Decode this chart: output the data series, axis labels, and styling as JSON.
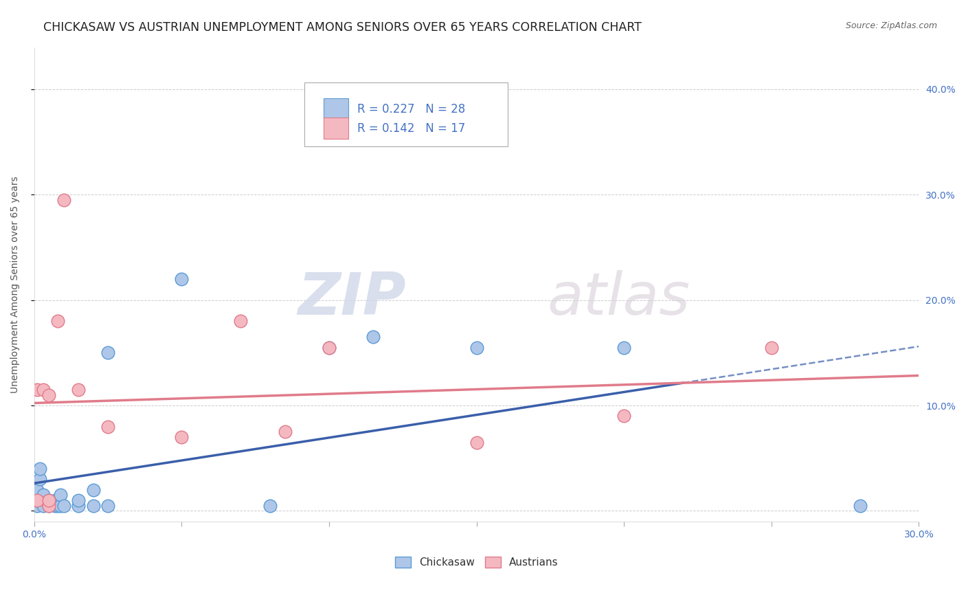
{
  "title": "CHICKASAW VS AUSTRIAN UNEMPLOYMENT AMONG SENIORS OVER 65 YEARS CORRELATION CHART",
  "source": "Source: ZipAtlas.com",
  "ylabel_label": "Unemployment Among Seniors over 65 years",
  "xlim": [
    0.0,
    0.3
  ],
  "ylim": [
    -0.01,
    0.44
  ],
  "x_ticks": [
    0.0,
    0.05,
    0.1,
    0.15,
    0.2,
    0.25,
    0.3
  ],
  "y_ticks": [
    0.0,
    0.1,
    0.2,
    0.3,
    0.4
  ],
  "chickasaw_color": "#aec6e8",
  "chickasaw_edge_color": "#5b9bd5",
  "austrian_color": "#f4b8c1",
  "austrian_edge_color": "#e07b8a",
  "trendline_chickasaw_color": "#3a5faa",
  "trendline_austrian_color": "#e07b8a",
  "R_chickasaw": 0.227,
  "N_chickasaw": 28,
  "R_austrian": 0.142,
  "N_austrian": 17,
  "chickasaw_x": [
    0.001,
    0.001,
    0.001,
    0.002,
    0.002,
    0.003,
    0.003,
    0.005,
    0.005,
    0.007,
    0.007,
    0.008,
    0.009,
    0.009,
    0.01,
    0.015,
    0.015,
    0.02,
    0.02,
    0.025,
    0.025,
    0.05,
    0.08,
    0.1,
    0.115,
    0.15,
    0.2,
    0.28
  ],
  "chickasaw_y": [
    0.005,
    0.01,
    0.02,
    0.03,
    0.04,
    0.005,
    0.015,
    0.005,
    0.01,
    0.005,
    0.01,
    0.005,
    0.005,
    0.015,
    0.005,
    0.005,
    0.01,
    0.005,
    0.02,
    0.005,
    0.15,
    0.22,
    0.005,
    0.155,
    0.165,
    0.155,
    0.155,
    0.005
  ],
  "austrian_x": [
    0.001,
    0.001,
    0.003,
    0.005,
    0.005,
    0.005,
    0.008,
    0.01,
    0.015,
    0.025,
    0.05,
    0.07,
    0.085,
    0.1,
    0.15,
    0.2,
    0.25
  ],
  "austrian_y": [
    0.01,
    0.115,
    0.115,
    0.005,
    0.01,
    0.11,
    0.18,
    0.295,
    0.115,
    0.08,
    0.07,
    0.18,
    0.075,
    0.155,
    0.065,
    0.09,
    0.155
  ],
  "watermark_zip": "ZIP",
  "watermark_atlas": "atlas",
  "legend_label_chickasaw": "Chickasaw",
  "legend_label_austrian": "Austrians",
  "title_fontsize": 12.5,
  "axis_label_fontsize": 10,
  "tick_fontsize": 10,
  "tick_color": "#4472c4",
  "grid_color": "#cccccc",
  "background_color": "#ffffff"
}
